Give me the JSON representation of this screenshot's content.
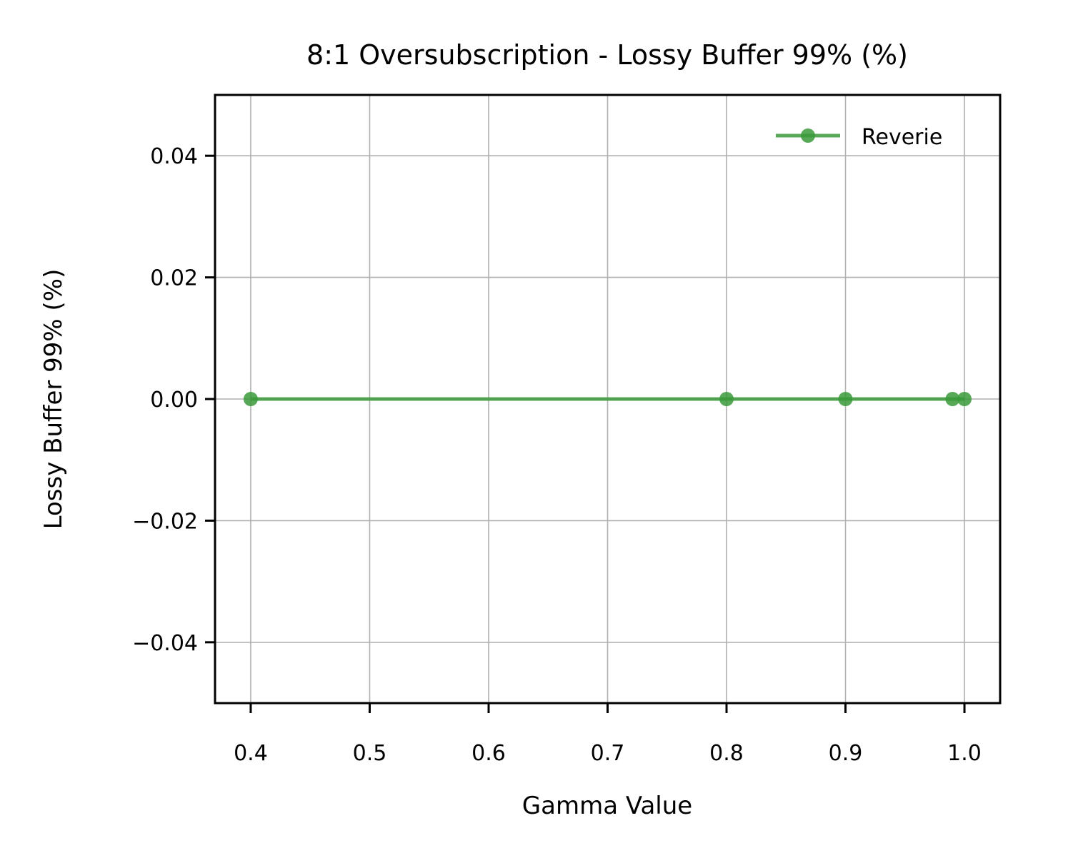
{
  "chart_data": {
    "type": "line",
    "title": "8:1 Oversubscription - Lossy Buffer 99% (%)",
    "xlabel": "Gamma Value",
    "ylabel": "Lossy Buffer 99% (%)",
    "xlim": [
      0.37,
      1.03
    ],
    "ylim": [
      -0.05,
      0.05
    ],
    "xticks": [
      0.4,
      0.5,
      0.6,
      0.7,
      0.8,
      0.9,
      1.0
    ],
    "xtick_labels": [
      "0.4",
      "0.5",
      "0.6",
      "0.7",
      "0.8",
      "0.9",
      "1.0"
    ],
    "yticks": [
      -0.04,
      -0.02,
      0.0,
      0.02,
      0.04
    ],
    "ytick_labels": [
      "−0.04",
      "−0.02",
      "0.00",
      "0.02",
      "0.04"
    ],
    "grid": true,
    "legend_position": "top-right",
    "series": [
      {
        "name": "Reverie",
        "color": "#3a9a3a",
        "marker": "circle",
        "x": [
          0.4,
          0.8,
          0.9,
          0.99,
          1.0
        ],
        "y": [
          0.0,
          0.0,
          0.0,
          0.0,
          0.0
        ]
      }
    ]
  }
}
